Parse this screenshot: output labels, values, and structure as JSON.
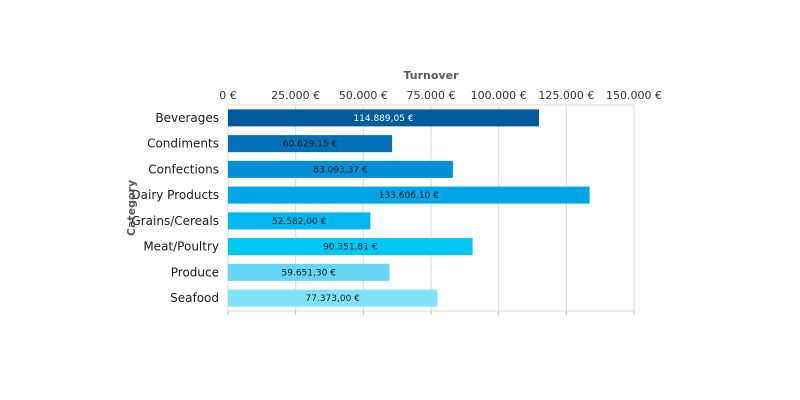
{
  "chart_data": {
    "type": "bar",
    "orientation": "horizontal",
    "title": "",
    "xlabel": "Turnover",
    "ylabel": "Category",
    "categories": [
      "Beverages",
      "Condiments",
      "Confections",
      "Dairy Products",
      "Grains/Cereals",
      "Meat/Poultry",
      "Produce",
      "Seafood"
    ],
    "values": [
      114889.05,
      60629.15,
      83093.37,
      133606.1,
      52582.0,
      90351.81,
      59651.3,
      77373.0
    ],
    "data_labels": [
      "114.889,05 €",
      "60.629,15 €",
      "83.093,37 €",
      "133.606,10 €",
      "52.582,00 €",
      "90.351,81 €",
      "59.651,30 €",
      "77.373,00 €"
    ],
    "xlim": [
      0,
      150000
    ],
    "x_ticks": [
      0,
      25000,
      50000,
      75000,
      100000,
      125000,
      150000
    ],
    "x_tick_labels": [
      "0 €",
      "25.000 €",
      "50.000 €",
      "75.000 €",
      "100.000 €",
      "125.000 €",
      "150.000 €"
    ],
    "x_axis_position": "top",
    "grid": true,
    "legend": "none",
    "colors": [
      "#005a9c",
      "#0070b8",
      "#0090d8",
      "#00a7e6",
      "#00b8ef",
      "#00c8f5",
      "#66d6f7",
      "#7fe2fb"
    ],
    "label_colors": [
      "#ffffff",
      "#1a1a1a",
      "#1a1a1a",
      "#1a1a1a",
      "#1a1a1a",
      "#1a1a1a",
      "#1a1a1a",
      "#1a1a1a"
    ]
  }
}
